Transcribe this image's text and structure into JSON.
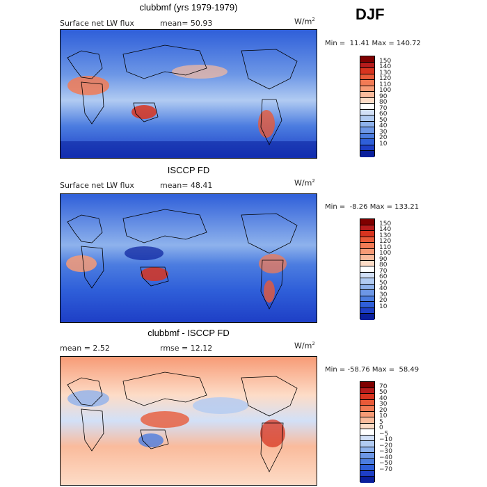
{
  "season": "DJF",
  "panels": [
    {
      "title": "clubbmf (yrs 1979-1979)",
      "subtitle_left": "Surface net LW flux",
      "subtitle_mean": "mean=  50.93",
      "unit": "W/m",
      "unit_sup": "2",
      "minmax": "Min =  11.41 Max = 140.72",
      "colorbar_ticks": [
        "150",
        "140",
        "130",
        "120",
        "110",
        "100",
        "90",
        "80",
        "70",
        "60",
        "50",
        "40",
        "30",
        "20",
        "10"
      ],
      "palette": [
        "#7f0000",
        "#b71c1c",
        "#d8341f",
        "#e95a38",
        "#f27b55",
        "#f79b76",
        "#fabb9c",
        "#fddcc7",
        "#ffffff",
        "#d2e0f7",
        "#b1cbf2",
        "#8eb2ec",
        "#6d97e6",
        "#4c7de0",
        "#2f5fd9",
        "#1e3fc6",
        "#0a1f9c"
      ],
      "mean": 50.93,
      "min": 11.41,
      "max": 140.72
    },
    {
      "title": "ISCCP FD",
      "subtitle_left": "Surface net LW flux",
      "subtitle_mean": "mean=  48.41",
      "unit": "W/m",
      "unit_sup": "2",
      "minmax": "Min =  -8.26 Max = 133.21",
      "colorbar_ticks": [
        "150",
        "140",
        "130",
        "120",
        "110",
        "100",
        "90",
        "80",
        "70",
        "60",
        "50",
        "40",
        "30",
        "20",
        "10"
      ],
      "palette": [
        "#7f0000",
        "#b71c1c",
        "#d8341f",
        "#e95a38",
        "#f27b55",
        "#f79b76",
        "#fabb9c",
        "#fddcc7",
        "#ffffff",
        "#d2e0f7",
        "#b1cbf2",
        "#8eb2ec",
        "#6d97e6",
        "#4c7de0",
        "#2f5fd9",
        "#1e3fc6",
        "#0a1f9c"
      ],
      "mean": 48.41,
      "min": -8.26,
      "max": 133.21
    },
    {
      "title": "clubbmf - ISCCP FD",
      "subtitle_left": "mean =   2.52",
      "subtitle_mean": "rmse =  12.12",
      "unit": "W/m",
      "unit_sup": "2",
      "minmax": "Min = -58.76 Max =  58.49",
      "colorbar_ticks": [
        "70",
        "50",
        "40",
        "30",
        "20",
        "10",
        "5",
        "0",
        "−5",
        "−10",
        "−20",
        "−30",
        "−40",
        "−50",
        "−70"
      ],
      "palette": [
        "#7f0000",
        "#b71c1c",
        "#d8341f",
        "#e95a38",
        "#f27b55",
        "#f79b76",
        "#fabb9c",
        "#fddcc7",
        "#ffffff",
        "#d2e0f7",
        "#b1cbf2",
        "#8eb2ec",
        "#6d97e6",
        "#4c7de0",
        "#2f5fd9",
        "#1e3fc6",
        "#0a1f9c"
      ],
      "mean": 2.52,
      "rmse": 12.12,
      "min": -58.76,
      "max": 58.49
    }
  ],
  "chart_data": [
    {
      "type": "heatmap",
      "title": "clubbmf (yrs 1979-1979)",
      "variable": "Surface net LW flux",
      "units": "W/m2",
      "season": "DJF",
      "mean": 50.93,
      "min": 11.41,
      "max": 140.72,
      "levels": [
        10,
        20,
        30,
        40,
        50,
        60,
        70,
        80,
        90,
        100,
        110,
        120,
        130,
        140,
        150
      ]
    },
    {
      "type": "heatmap",
      "title": "ISCCP FD",
      "variable": "Surface net LW flux",
      "units": "W/m2",
      "season": "DJF",
      "mean": 48.41,
      "min": -8.26,
      "max": 133.21,
      "levels": [
        10,
        20,
        30,
        40,
        50,
        60,
        70,
        80,
        90,
        100,
        110,
        120,
        130,
        140,
        150
      ]
    },
    {
      "type": "heatmap",
      "title": "clubbmf - ISCCP FD",
      "units": "W/m2",
      "season": "DJF",
      "mean": 2.52,
      "rmse": 12.12,
      "min": -58.76,
      "max": 58.49,
      "levels": [
        -70,
        -50,
        -40,
        -30,
        -20,
        -10,
        -5,
        0,
        5,
        10,
        20,
        30,
        40,
        50,
        70
      ]
    }
  ]
}
